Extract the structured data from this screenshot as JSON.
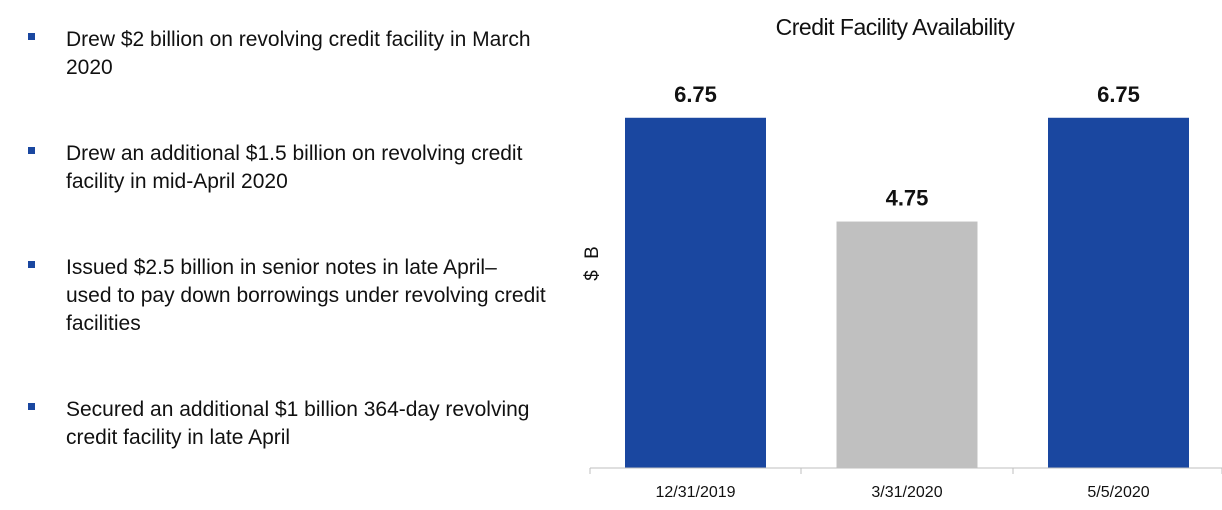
{
  "bullets": [
    {
      "text": "Drew $2 billion on revolving credit facility in March 2020"
    },
    {
      "text": "Drew an additional $1.5 billion on revolving credit facility in mid-April 2020"
    },
    {
      "text": "Issued $2.5 billion in senior notes in late April– used to pay down borrowings under revolving credit facilities"
    },
    {
      "text": "Secured an additional $1 billion 364-day revolving credit facility in late April"
    }
  ],
  "colors": {
    "primary_bar": "#1a47a0",
    "highlight_bar": "#c0c0c0",
    "bullet": "#1a47a0",
    "axis": "#bfbfbf"
  },
  "chart_data": {
    "type": "bar",
    "title": "Credit Facility Availability",
    "xlabel": "",
    "ylabel": "$ B",
    "categories": [
      "12/31/2019",
      "3/31/2020",
      "5/5/2020"
    ],
    "values": [
      6.75,
      4.75,
      6.75
    ],
    "value_labels": [
      "6.75",
      "4.75",
      "6.75"
    ],
    "bar_colors": [
      "#1a47a0",
      "#c0c0c0",
      "#1a47a0"
    ],
    "ylim": [
      0,
      8.75
    ],
    "grid": false,
    "legend": "none"
  }
}
